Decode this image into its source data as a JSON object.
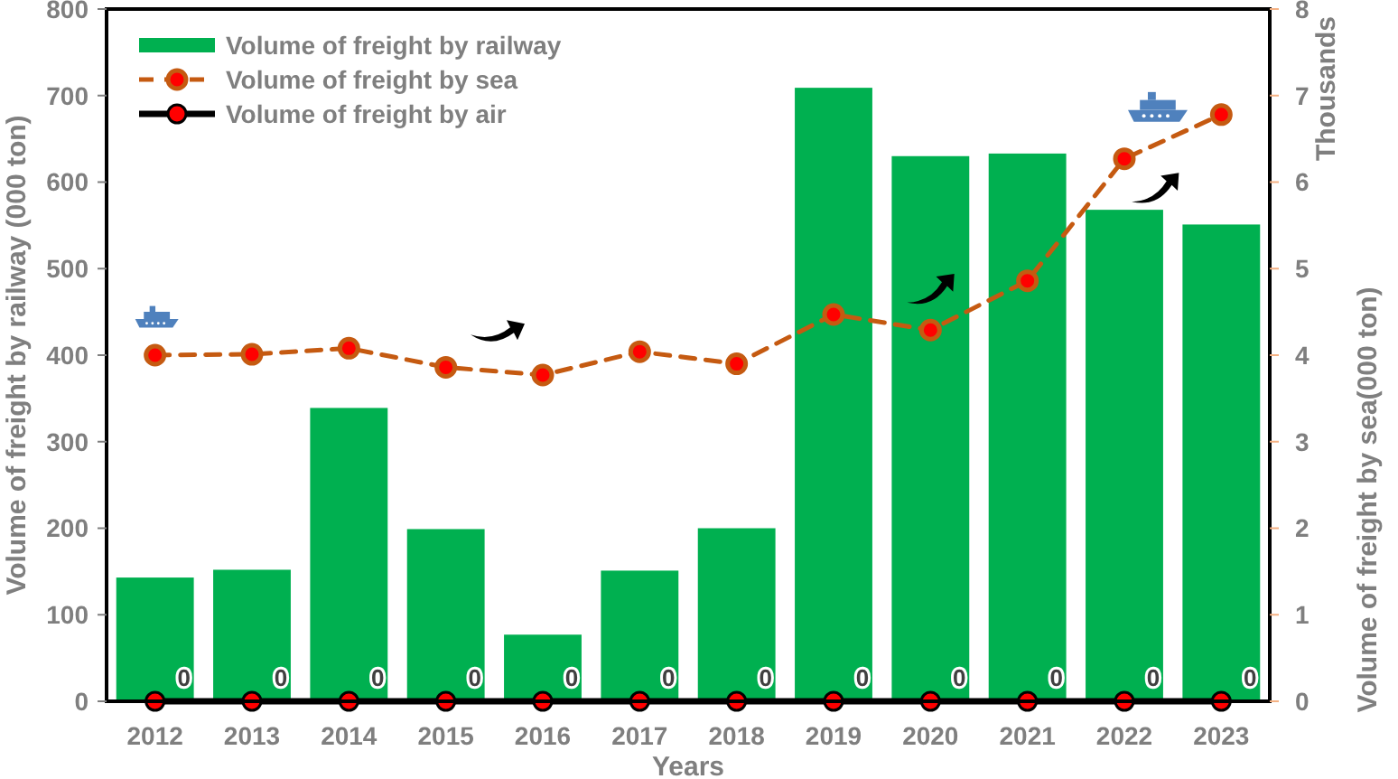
{
  "chart_data": {
    "type": "bar",
    "xlabel": "Years",
    "ylabel": "Volume of freight by railway (000 ton)",
    "y2label": "Volume of freight by sea(000 ton)",
    "annotations": [
      "Thousands"
    ],
    "categories": [
      "2012",
      "2013",
      "2014",
      "2015",
      "2016",
      "2017",
      "2018",
      "2019",
      "2020",
      "2021",
      "2022",
      "2023"
    ],
    "series": [
      {
        "name": "Volume of freight by railway",
        "color": "#00b050",
        "values": [
          143,
          152,
          339,
          199,
          77,
          151,
          200,
          709,
          630,
          633,
          568,
          551
        ]
      },
      {
        "name": "Volume of freight by sea",
        "type": "line",
        "axis": "y2",
        "color": "#c55a11",
        "line_style": "dashed",
        "marker": "circle",
        "values": [
          4.0,
          4.01,
          4.08,
          3.86,
          3.77,
          4.04,
          3.9,
          4.47,
          4.29,
          4.86,
          6.27,
          6.78
        ]
      },
      {
        "name": "Volume of freight by air",
        "type": "line",
        "color": "#000000",
        "line_style": "solid",
        "marker": "circle",
        "values": [
          0,
          0,
          0,
          0,
          0,
          0,
          0,
          0,
          0,
          0,
          0,
          0
        ],
        "value_labels": [
          "0",
          "0",
          "0",
          "0",
          "0",
          "0",
          "0",
          "0",
          "0",
          "0",
          "0",
          "0"
        ]
      }
    ],
    "ylim": [
      0,
      800
    ],
    "yticks": [
      0,
      100,
      200,
      300,
      400,
      500,
      600,
      700,
      800
    ],
    "y2lim": [
      0,
      8
    ],
    "y2ticks": [
      0,
      1,
      2,
      3,
      4,
      5,
      6,
      7,
      8
    ],
    "grid": false,
    "legend": "top left"
  }
}
